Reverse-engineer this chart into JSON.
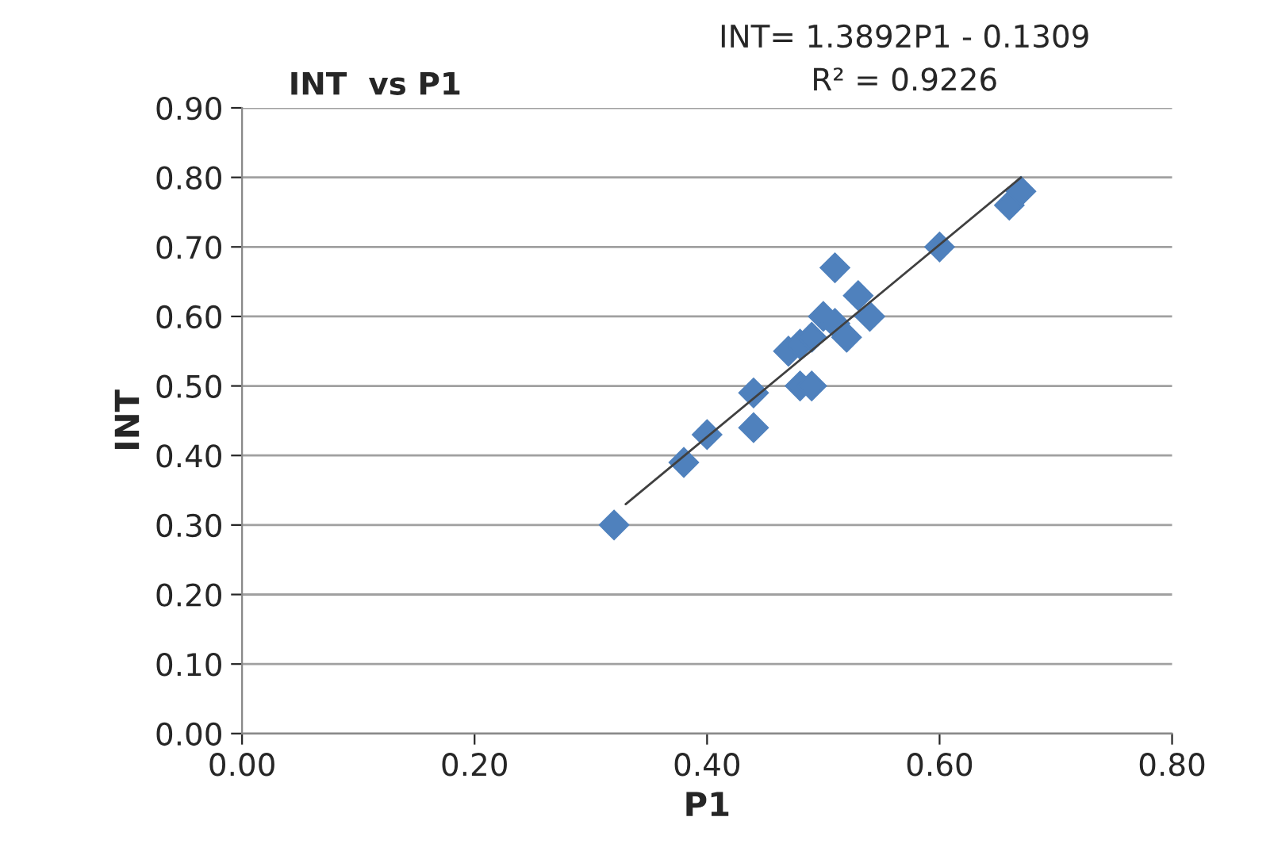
{
  "chart_data": {
    "type": "scatter",
    "title": "INT  vs P1",
    "xlabel": "P1",
    "ylabel": "INT",
    "annotations": [
      "INT= 1.3892P1 - 0.1309",
      "R² = 0.9226"
    ],
    "xlim": [
      0,
      0.8
    ],
    "xticks": [
      {
        "value": 0,
        "label": "0.00"
      },
      {
        "value": 0.2,
        "label": "0.20"
      },
      {
        "value": 0.4,
        "label": "0.40"
      },
      {
        "value": 0.6,
        "label": "0.60"
      },
      {
        "value": 0.8,
        "label": "0.80"
      }
    ],
    "ylim": [
      0,
      0.9
    ],
    "yticks": [
      {
        "value": 0,
        "label": "0.00"
      },
      {
        "value": 0.1,
        "label": "0.10"
      },
      {
        "value": 0.2,
        "label": "0.20"
      },
      {
        "value": 0.3,
        "label": "0.30"
      },
      {
        "value": 0.4,
        "label": "0.40"
      },
      {
        "value": 0.5,
        "label": "0.50"
      },
      {
        "value": 0.6,
        "label": "0.60"
      },
      {
        "value": 0.7,
        "label": "0.70"
      },
      {
        "value": 0.8,
        "label": "0.80"
      },
      {
        "value": 0.9,
        "label": "0.90"
      }
    ],
    "grid": "y",
    "marker": "diamond",
    "series": [
      {
        "color": "#4f81bd",
        "x": [
          0.32,
          0.38,
          0.4,
          0.44,
          0.44,
          0.47,
          0.48,
          0.49,
          0.48,
          0.49,
          0.5,
          0.51,
          0.51,
          0.52,
          0.53,
          0.54,
          0.6,
          0.66,
          0.67
        ],
        "values": [
          0.3,
          0.39,
          0.43,
          0.49,
          0.44,
          0.55,
          0.56,
          0.57,
          0.5,
          0.5,
          0.6,
          0.59,
          0.67,
          0.57,
          0.63,
          0.6,
          0.7,
          0.76,
          0.78
        ]
      },
      {
        "type": "line",
        "marker": "none",
        "color": "#404040",
        "x": [
          0.33,
          0.67
        ],
        "values": [
          0.33,
          0.8
        ]
      }
    ]
  }
}
